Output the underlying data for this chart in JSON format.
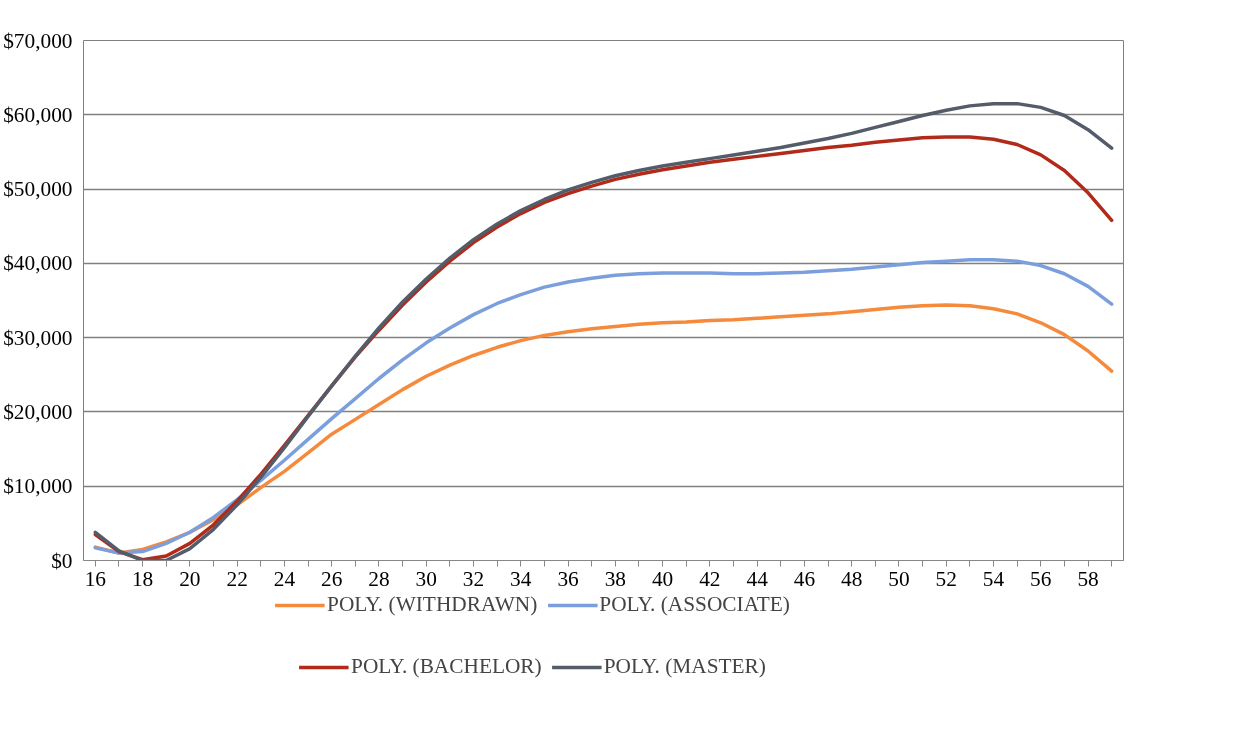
{
  "chart_data": {
    "type": "line",
    "categories": [
      "16",
      null,
      "18",
      null,
      "20",
      null,
      "22",
      null,
      "24",
      null,
      "26",
      null,
      "28",
      null,
      "30",
      null,
      "32",
      null,
      "34",
      null,
      "36",
      null,
      "38",
      null,
      "40",
      null,
      "42",
      null,
      "44",
      null,
      "46",
      null,
      "48",
      null,
      "50",
      null,
      "52",
      null,
      "54",
      null,
      "56",
      null,
      "58",
      null
    ],
    "ylim": [
      0,
      70000
    ],
    "yticks": [
      {
        "value": 0,
        "label": "$0"
      },
      {
        "value": 10000,
        "label": "$10,000"
      },
      {
        "value": 20000,
        "label": "$20,000"
      },
      {
        "value": 30000,
        "label": "$30,000"
      },
      {
        "value": 40000,
        "label": "$40,000"
      },
      {
        "value": 50000,
        "label": "$50,000"
      },
      {
        "value": 60000,
        "label": "$60,000"
      },
      {
        "value": 70000,
        "label": "$70,000"
      }
    ],
    "grid": "y",
    "legend": "bottom",
    "marker": "none",
    "line_style": "solid",
    "series": [
      {
        "name": "POLY. (WITHDRAWN)",
        "color": "#f58a3c",
        "values": [
          1800,
          1000,
          1500,
          2500,
          3800,
          5500,
          7500,
          9800,
          12000,
          14500,
          17000,
          19000,
          21000,
          23000,
          24800,
          26300,
          27600,
          28700,
          29600,
          30300,
          30800,
          31200,
          31500,
          31800,
          32000,
          32100,
          32300,
          32400,
          32600,
          32800,
          33000,
          33200,
          33500,
          33800,
          34100,
          34300,
          34400,
          34300,
          33900,
          33200,
          32000,
          30400,
          28200,
          25500
        ]
      },
      {
        "name": "POLY. (ASSOCIATE)",
        "color": "#7b9fdc",
        "values": [
          1700,
          1000,
          1200,
          2300,
          3800,
          5800,
          8200,
          10800,
          13500,
          16300,
          19100,
          21800,
          24500,
          27000,
          29300,
          31300,
          33100,
          34600,
          35800,
          36800,
          37500,
          38000,
          38400,
          38600,
          38700,
          38700,
          38700,
          38600,
          38600,
          38700,
          38800,
          39000,
          39200,
          39500,
          39800,
          40100,
          40300,
          40500,
          40500,
          40300,
          39700,
          38600,
          36900,
          34500
        ]
      },
      {
        "name": "POLY. (BACHELOR)",
        "color": "#b22a1a",
        "values": [
          3500,
          1200,
          100,
          600,
          2300,
          4800,
          8000,
          11600,
          15500,
          19500,
          23500,
          27400,
          31000,
          34400,
          37500,
          40300,
          42800,
          44900,
          46700,
          48200,
          49400,
          50400,
          51300,
          52000,
          52600,
          53100,
          53600,
          54000,
          54400,
          54800,
          55200,
          55600,
          55900,
          56300,
          56600,
          56900,
          57000,
          57000,
          56700,
          56000,
          54600,
          52500,
          49500,
          45800
        ]
      },
      {
        "name": "POLY. (MASTER)",
        "color": "#545c6a",
        "values": [
          3800,
          1300,
          0,
          0,
          1600,
          4200,
          7500,
          11200,
          15200,
          19400,
          23500,
          27500,
          31300,
          34800,
          37900,
          40700,
          43200,
          45300,
          47100,
          48600,
          49900,
          50900,
          51800,
          52500,
          53100,
          53600,
          54100,
          54600,
          55100,
          55600,
          56200,
          56800,
          57500,
          58300,
          59100,
          59900,
          60600,
          61200,
          61500,
          61500,
          61000,
          59900,
          58000,
          55500
        ]
      }
    ]
  }
}
